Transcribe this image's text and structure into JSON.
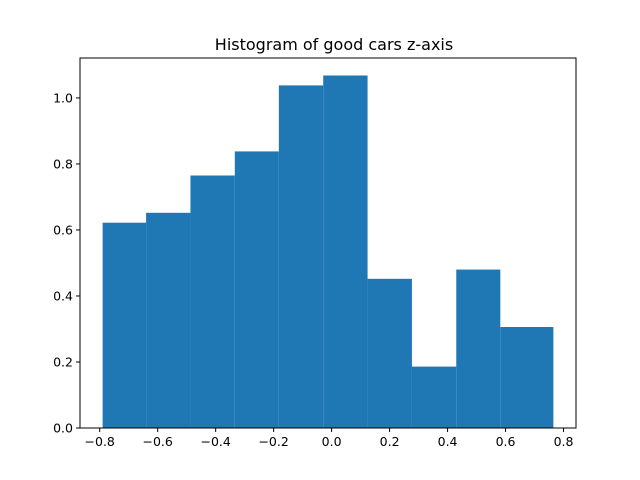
{
  "chart_data": {
    "type": "bar",
    "title": "Histogram of good cars z-axis",
    "xlabel": "",
    "ylabel": "",
    "bin_edges": [
      -0.79,
      -0.64,
      -0.487,
      -0.334,
      -0.182,
      -0.029,
      0.124,
      0.277,
      0.43,
      0.582,
      0.765
    ],
    "values": [
      0.622,
      0.652,
      0.765,
      0.838,
      1.038,
      1.068,
      0.452,
      0.186,
      0.48,
      0.306
    ],
    "xlim": [
      -0.868,
      0.843
    ],
    "ylim": [
      0,
      1.121
    ],
    "x_ticks": [
      -0.8,
      -0.6,
      -0.4,
      -0.2,
      0.0,
      0.2,
      0.4,
      0.6,
      0.8
    ],
    "x_tick_labels": [
      "−0.8",
      "−0.6",
      "−0.4",
      "−0.2",
      "0.0",
      "0.2",
      "0.4",
      "0.6",
      "0.8"
    ],
    "y_ticks": [
      0.0,
      0.2,
      0.4,
      0.6,
      0.8,
      1.0
    ],
    "y_tick_labels": [
      "0.0",
      "0.2",
      "0.4",
      "0.6",
      "0.8",
      "1.0"
    ],
    "bar_color": "#1f77b4",
    "grid": false,
    "legend": "none"
  }
}
